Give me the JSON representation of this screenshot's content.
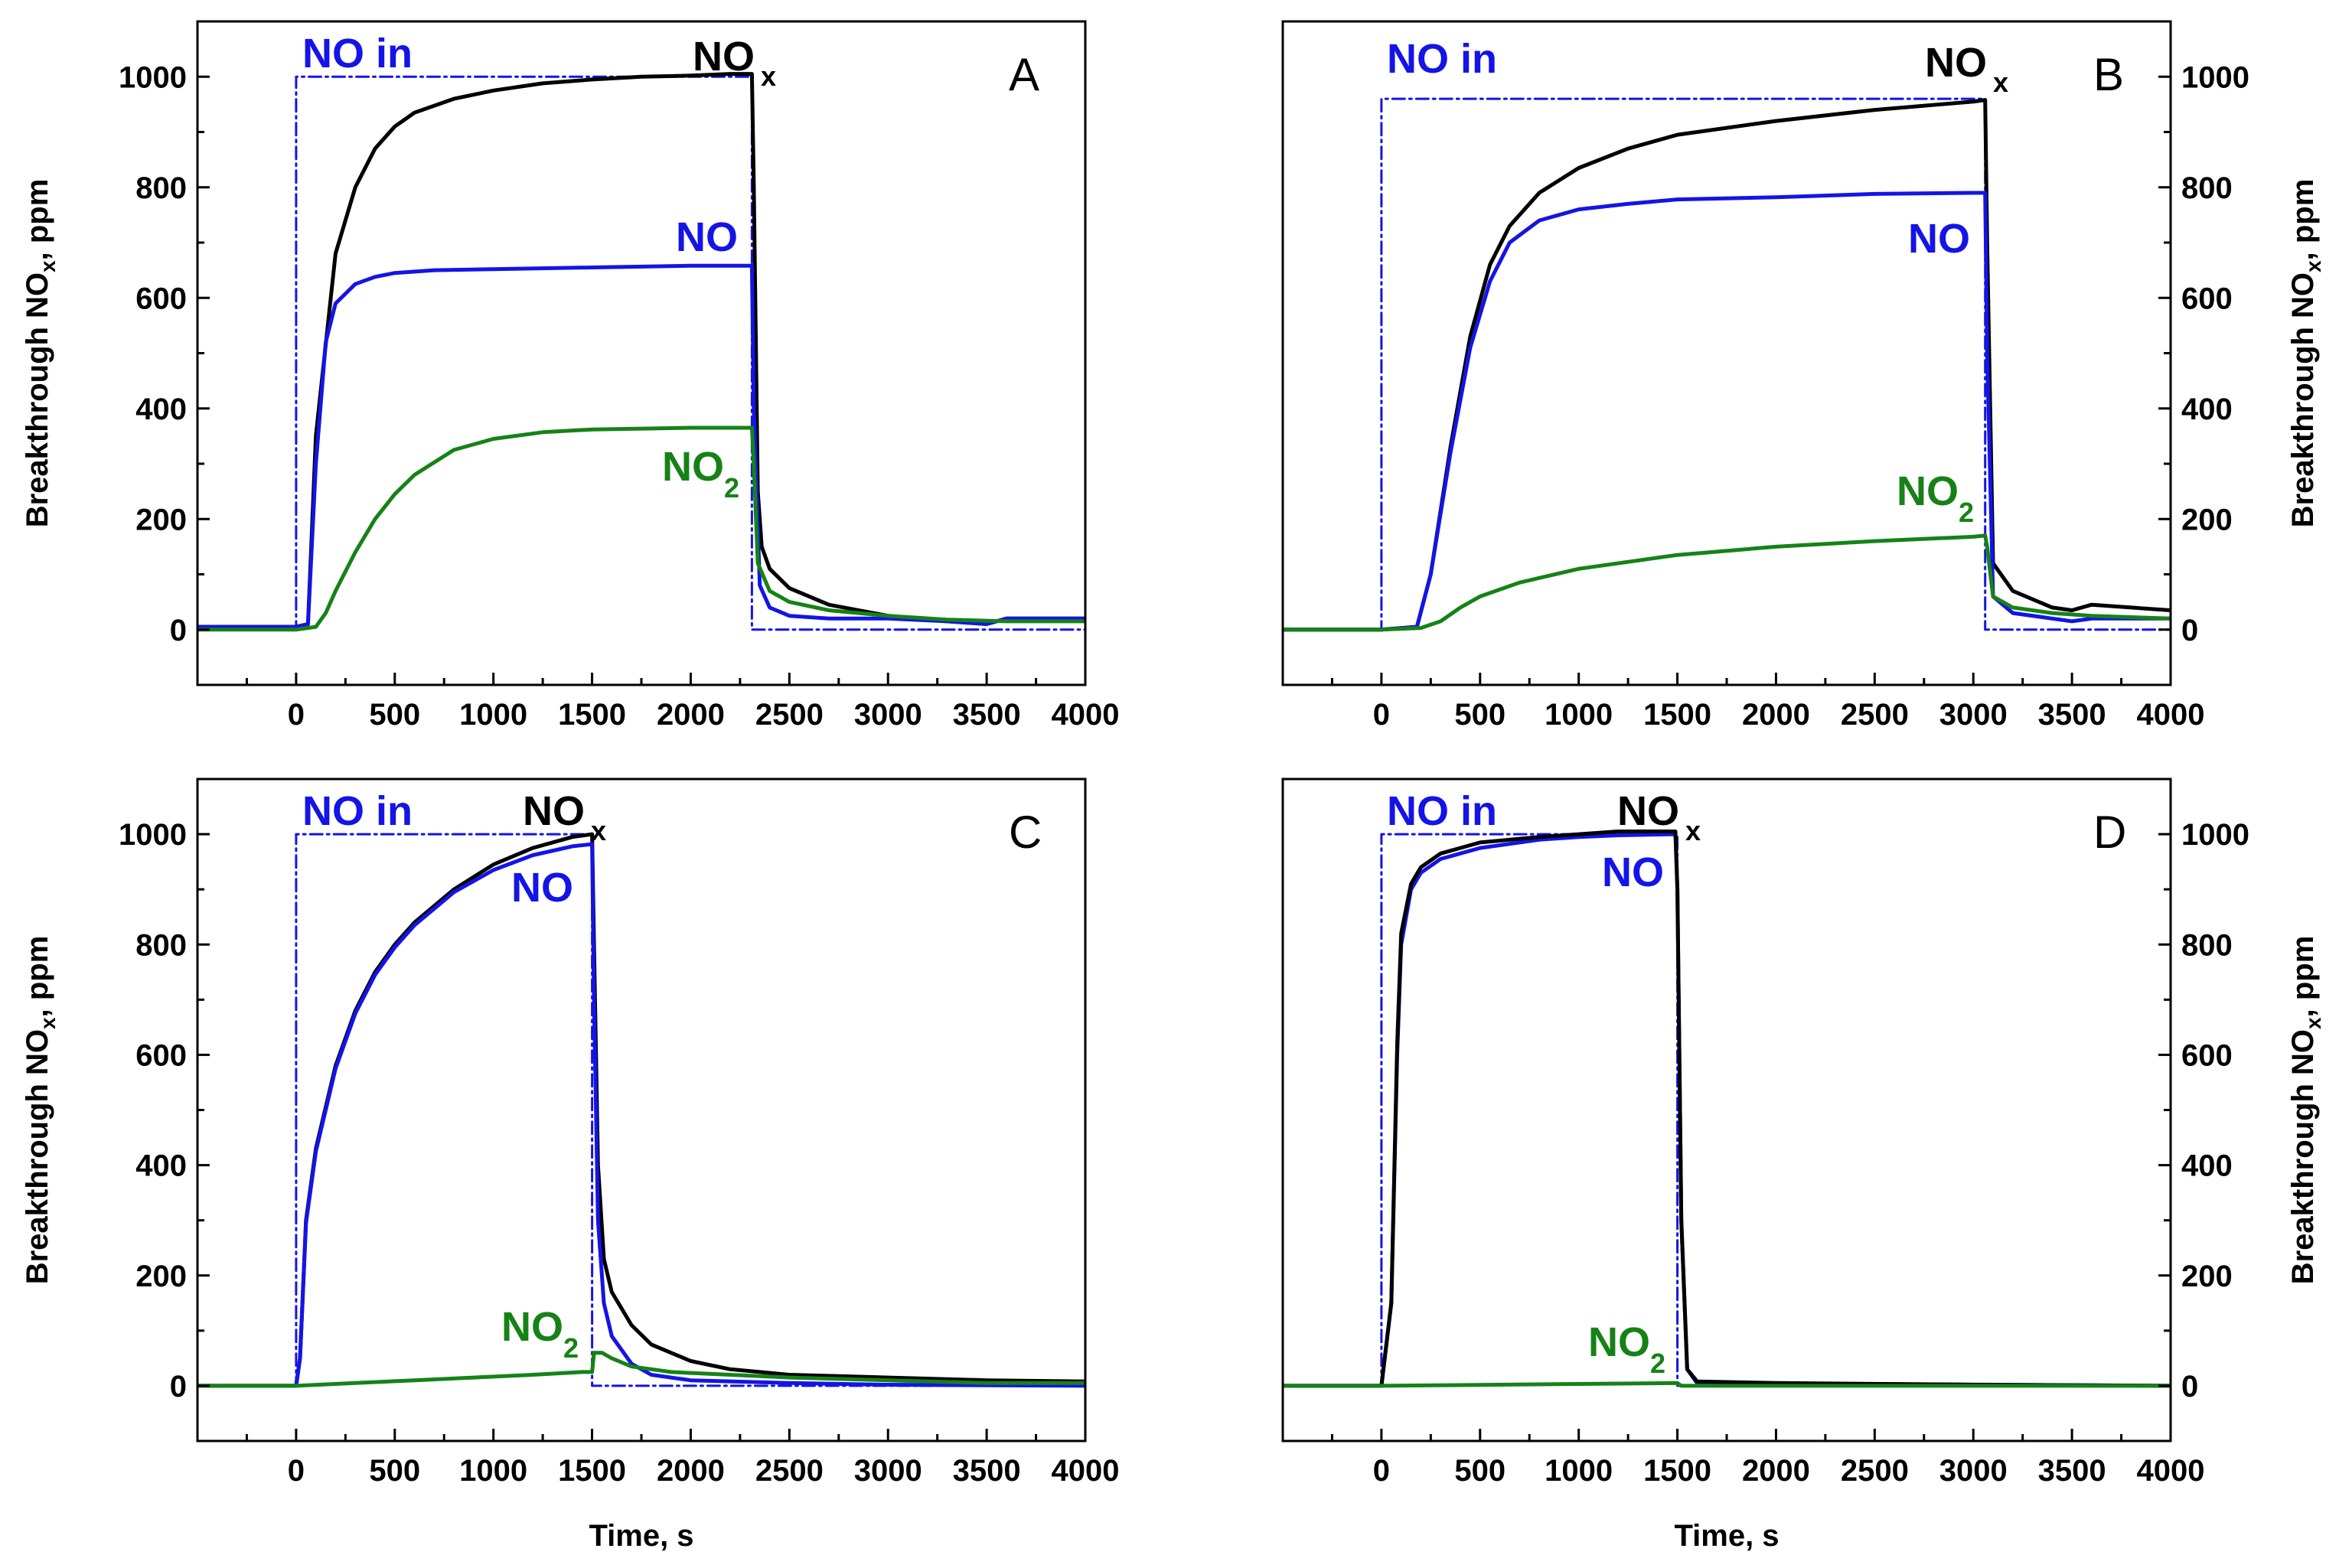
{
  "figure": {
    "x_axis_label": "Time, s",
    "y_axis_label_main": "Breakthrough NO",
    "y_axis_label_sub": "x",
    "y_axis_label_tail": ", ppm"
  },
  "colors": {
    "NOx": "#000000",
    "NO": "#1414e6",
    "NO2": "#168216",
    "NO_in": "#1414e6"
  },
  "chart_data": [
    {
      "panel": "A",
      "type": "line",
      "xlabel": "Time, s",
      "ylabel": "Breakthrough NOx, ppm",
      "xlim": [
        -500,
        4000
      ],
      "ylim": [
        -100,
        1100
      ],
      "xticks": [
        0,
        500,
        1000,
        1500,
        2000,
        2500,
        3000,
        3500,
        4000
      ],
      "yticks": [
        0,
        200,
        400,
        600,
        800,
        1000
      ],
      "labels": {
        "no_in": "NO in",
        "nox": "NO",
        "nox_sub": "x",
        "no": "NO",
        "no2": "NO",
        "no2_sub": "2"
      },
      "series": [
        {
          "name": "NO in",
          "style": "dashdot",
          "x": [
            -500,
            0,
            0,
            2310,
            2310,
            4000
          ],
          "y": [
            0,
            0,
            1000,
            1000,
            0,
            0
          ]
        },
        {
          "name": "NOx",
          "x": [
            -500,
            0,
            60,
            100,
            200,
            300,
            400,
            500,
            600,
            800,
            1000,
            1250,
            1500,
            1750,
            2000,
            2200,
            2310,
            2320,
            2340,
            2360,
            2400,
            2500,
            2700,
            3000,
            3300,
            3500,
            3600,
            3800,
            4000
          ],
          "y": [
            5,
            5,
            10,
            350,
            680,
            800,
            870,
            910,
            935,
            960,
            975,
            988,
            995,
            1000,
            1002,
            1005,
            1005,
            800,
            250,
            150,
            110,
            75,
            45,
            25,
            15,
            10,
            20,
            20,
            20
          ]
        },
        {
          "name": "NO",
          "x": [
            -500,
            0,
            60,
            100,
            150,
            200,
            300,
            400,
            500,
            700,
            1000,
            1500,
            2000,
            2310,
            2320,
            2350,
            2400,
            2500,
            2700,
            3000,
            3300,
            3500,
            3600,
            3800,
            4000
          ],
          "y": [
            5,
            5,
            10,
            300,
            520,
            590,
            625,
            638,
            645,
            650,
            652,
            655,
            658,
            658,
            400,
            80,
            40,
            25,
            20,
            20,
            15,
            10,
            20,
            20,
            20
          ]
        },
        {
          "name": "NO2",
          "x": [
            -500,
            0,
            100,
            150,
            200,
            300,
            400,
            500,
            600,
            800,
            1000,
            1250,
            1500,
            2000,
            2310,
            2320,
            2340,
            2400,
            2500,
            2700,
            3000,
            3300,
            3600,
            3800,
            4000
          ],
          "y": [
            0,
            0,
            5,
            30,
            70,
            140,
            200,
            245,
            280,
            325,
            345,
            357,
            362,
            365,
            365,
            300,
            120,
            70,
            50,
            35,
            25,
            18,
            15,
            15,
            15
          ]
        }
      ]
    },
    {
      "panel": "B",
      "type": "line",
      "xlabel": "Time, s",
      "ylabel": "Breakthrough NOx, ppm",
      "xlim": [
        -500,
        4000
      ],
      "ylim": [
        -100,
        1100
      ],
      "xticks": [
        0,
        500,
        1000,
        1500,
        2000,
        2500,
        3000,
        3500,
        4000
      ],
      "yticks": [
        0,
        200,
        400,
        600,
        800,
        1000
      ],
      "labels": {
        "no_in": "NO in",
        "nox": "NO",
        "nox_sub": "x",
        "no": "NO",
        "no2": "NO",
        "no2_sub": "2"
      },
      "series": [
        {
          "name": "NO in",
          "style": "dashdot",
          "x": [
            -500,
            0,
            0,
            3060,
            3060,
            4000
          ],
          "y": [
            0,
            0,
            960,
            960,
            0,
            0
          ]
        },
        {
          "name": "NOx",
          "x": [
            -500,
            0,
            180,
            250,
            350,
            450,
            550,
            650,
            800,
            1000,
            1250,
            1500,
            2000,
            2500,
            3000,
            3060,
            3070,
            3100,
            3200,
            3400,
            3500,
            3600,
            3800,
            4000
          ],
          "y": [
            0,
            0,
            5,
            100,
            330,
            530,
            660,
            730,
            790,
            835,
            870,
            895,
            920,
            940,
            955,
            958,
            700,
            120,
            70,
            40,
            35,
            45,
            40,
            35
          ]
        },
        {
          "name": "NO",
          "x": [
            -500,
            0,
            180,
            250,
            350,
            450,
            550,
            650,
            800,
            1000,
            1250,
            1500,
            2000,
            2500,
            3000,
            3060,
            3070,
            3100,
            3200,
            3400,
            3500,
            3600,
            3800,
            4000
          ],
          "y": [
            0,
            0,
            5,
            100,
            320,
            510,
            630,
            700,
            740,
            760,
            770,
            778,
            782,
            788,
            790,
            790,
            500,
            60,
            30,
            20,
            15,
            20,
            20,
            20
          ]
        },
        {
          "name": "NO2",
          "x": [
            -500,
            0,
            200,
            300,
            400,
            500,
            700,
            1000,
            1500,
            2000,
            2500,
            3000,
            3060,
            3070,
            3100,
            3200,
            3400,
            3600,
            4000
          ],
          "y": [
            0,
            0,
            3,
            15,
            40,
            60,
            85,
            110,
            135,
            150,
            160,
            168,
            170,
            150,
            60,
            40,
            30,
            25,
            20
          ]
        }
      ]
    },
    {
      "panel": "C",
      "type": "line",
      "xlabel": "Time, s",
      "ylabel": "Breakthrough NOx, ppm",
      "xlim": [
        -500,
        4000
      ],
      "ylim": [
        -100,
        1100
      ],
      "xticks": [
        0,
        500,
        1000,
        1500,
        2000,
        2500,
        3000,
        3500,
        4000
      ],
      "yticks": [
        0,
        200,
        400,
        600,
        800,
        1000
      ],
      "labels": {
        "no_in": "NO in",
        "nox": "NO",
        "nox_sub": "x",
        "no": "NO",
        "no2": "NO",
        "no2_sub": "2"
      },
      "series": [
        {
          "name": "NO in",
          "style": "dashdot",
          "x": [
            -500,
            0,
            0,
            1500,
            1500,
            4000
          ],
          "y": [
            0,
            0,
            1000,
            1000,
            0,
            0
          ]
        },
        {
          "name": "NOx",
          "x": [
            -500,
            0,
            20,
            50,
            100,
            200,
            300,
            400,
            500,
            600,
            800,
            1000,
            1200,
            1400,
            1500,
            1510,
            1530,
            1560,
            1600,
            1700,
            1800,
            2000,
            2200,
            2500,
            3000,
            3500,
            4000
          ],
          "y": [
            0,
            0,
            50,
            300,
            430,
            580,
            680,
            750,
            800,
            840,
            900,
            945,
            975,
            995,
            1000,
            800,
            400,
            230,
            170,
            110,
            75,
            45,
            30,
            20,
            15,
            10,
            8
          ]
        },
        {
          "name": "NO",
          "x": [
            -500,
            0,
            20,
            50,
            100,
            200,
            300,
            400,
            500,
            600,
            800,
            1000,
            1200,
            1400,
            1500,
            1510,
            1530,
            1560,
            1600,
            1700,
            1800,
            2000,
            2500,
            3000,
            4000
          ],
          "y": [
            0,
            0,
            50,
            295,
            425,
            575,
            675,
            745,
            795,
            835,
            895,
            935,
            962,
            978,
            982,
            700,
            300,
            150,
            90,
            40,
            20,
            10,
            5,
            2,
            0
          ]
        },
        {
          "name": "NO2",
          "x": [
            -500,
            0,
            300,
            600,
            900,
            1200,
            1450,
            1500,
            1510,
            1550,
            1600,
            1700,
            1900,
            2200,
            2500,
            3000,
            3500,
            4000
          ],
          "y": [
            0,
            0,
            5,
            10,
            15,
            20,
            25,
            25,
            60,
            60,
            50,
            35,
            25,
            20,
            15,
            10,
            5,
            5
          ]
        }
      ]
    },
    {
      "panel": "D",
      "type": "line",
      "xlabel": "Time, s",
      "ylabel": "Breakthrough NOx, ppm",
      "xlim": [
        -500,
        4000
      ],
      "ylim": [
        -100,
        1100
      ],
      "xticks": [
        0,
        500,
        1000,
        1500,
        2000,
        2500,
        3000,
        3500,
        4000
      ],
      "yticks": [
        0,
        200,
        400,
        600,
        800,
        1000
      ],
      "labels": {
        "no_in": "NO in",
        "nox": "NO",
        "nox_sub": "x",
        "no": "NO",
        "no2": "NO",
        "no2_sub": "2"
      },
      "series": [
        {
          "name": "NO in",
          "style": "dashdot",
          "x": [
            -500,
            0,
            0,
            1500,
            1500,
            4000
          ],
          "y": [
            0,
            0,
            1000,
            1000,
            0,
            0
          ]
        },
        {
          "name": "NO",
          "x": [
            -500,
            0,
            50,
            80,
            100,
            150,
            200,
            300,
            500,
            800,
            1000,
            1200,
            1490,
            1500,
            1520,
            1550,
            1600,
            4000
          ],
          "y": [
            0,
            0,
            150,
            600,
            800,
            900,
            930,
            955,
            975,
            990,
            995,
            998,
            1000,
            900,
            300,
            30,
            5,
            0
          ]
        },
        {
          "name": "NOx",
          "x": [
            -500,
            0,
            50,
            80,
            100,
            150,
            200,
            300,
            500,
            800,
            1000,
            1200,
            1490,
            1500,
            1520,
            1550,
            1600,
            2000,
            3000,
            4000
          ],
          "y": [
            0,
            0,
            150,
            620,
            820,
            910,
            940,
            965,
            985,
            995,
            1000,
            1005,
            1005,
            900,
            300,
            30,
            8,
            5,
            2,
            0
          ]
        },
        {
          "name": "NO2",
          "x": [
            -500,
            0,
            1500,
            1520,
            4000
          ],
          "y": [
            0,
            0,
            5,
            0,
            0
          ]
        }
      ]
    }
  ]
}
